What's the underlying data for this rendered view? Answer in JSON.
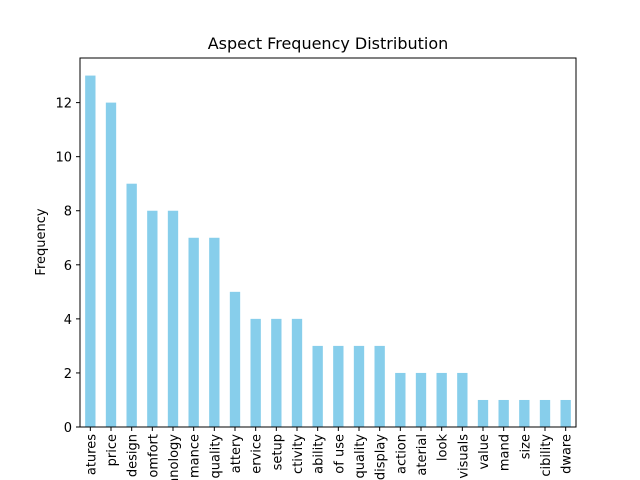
{
  "chart_data": {
    "type": "bar",
    "title": "Aspect Frequency Distribution",
    "ylabel": "Frequency",
    "categories": [
      "atures",
      "price",
      "design",
      "omfort",
      "hnology",
      "mance",
      "quality",
      "attery",
      "ervice",
      "setup",
      "ctivity",
      "ability",
      "of use",
      "quality",
      "display",
      "action",
      "aterial",
      "look",
      "visuals",
      "value",
      "mand",
      "size",
      "cibility",
      "dware"
    ],
    "values": [
      13,
      12,
      9,
      8,
      8,
      7,
      7,
      5,
      4,
      4,
      4,
      3,
      3,
      3,
      3,
      2,
      2,
      2,
      2,
      1,
      1,
      1,
      1,
      1
    ],
    "color": "#87ceeb",
    "ylim": [
      0,
      13.65
    ],
    "yticks": [
      0,
      2,
      4,
      6,
      8,
      10,
      12
    ],
    "grid": false
  }
}
